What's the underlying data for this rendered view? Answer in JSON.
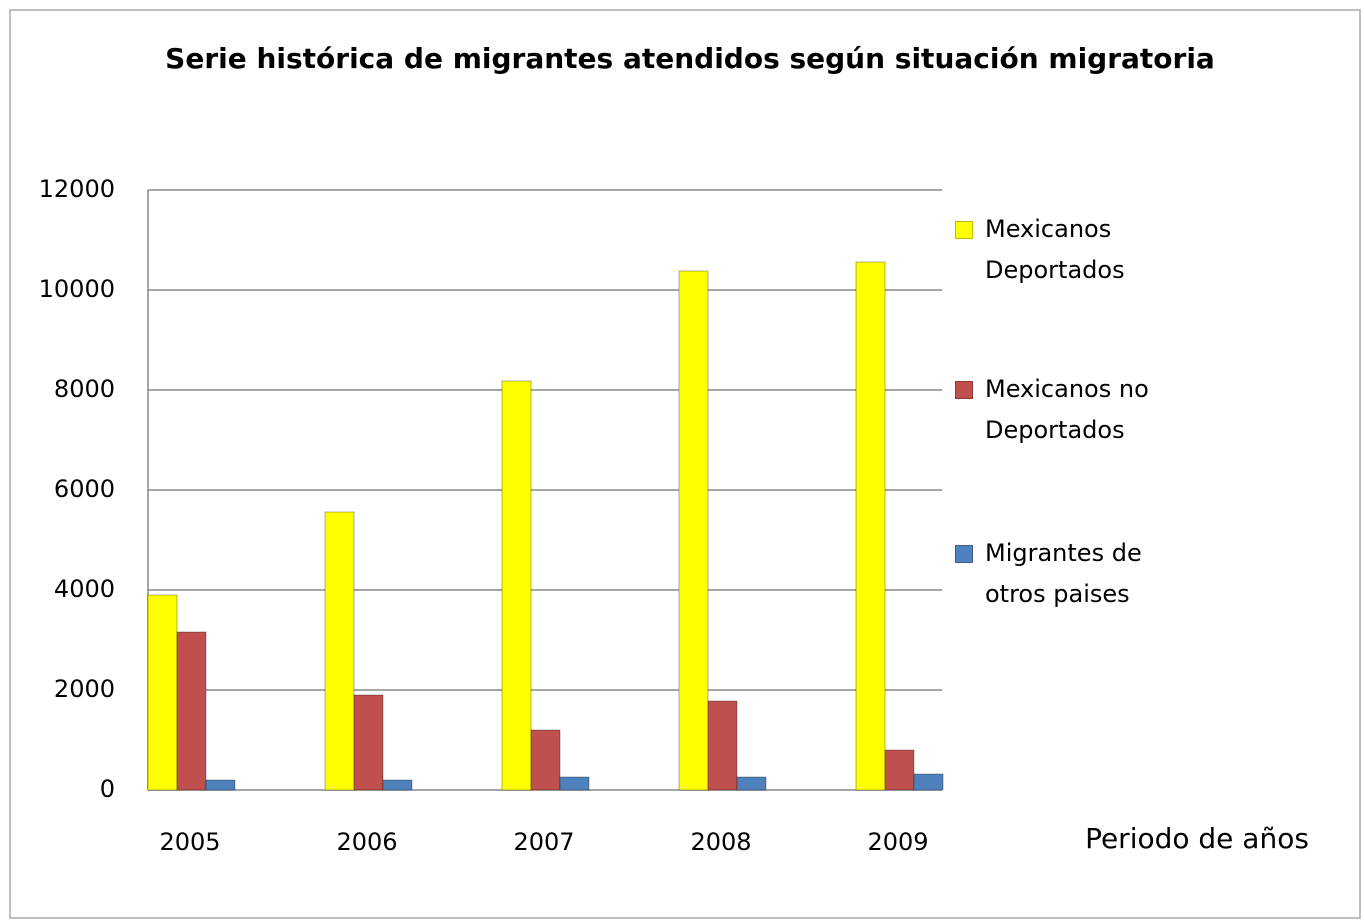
{
  "chart_data": {
    "type": "bar",
    "title": "Serie histórica de migrantes atendidos según situación migratoria",
    "x_label": "Periodo de años",
    "categories": [
      "2005",
      "2006",
      "2007",
      "2008",
      "2009"
    ],
    "series": [
      {
        "name": "Mexicanos Deportados",
        "color": "#ffff00",
        "values": [
          3900,
          5560,
          8180,
          10380,
          10560
        ]
      },
      {
        "name": "Mexicanos no Deportados",
        "color": "#c0504d",
        "values": [
          3160,
          1900,
          1200,
          1780,
          800
        ]
      },
      {
        "name": "Migrantes de otros paises",
        "color": "#4f81bd",
        "values": [
          200,
          200,
          260,
          260,
          320
        ]
      }
    ],
    "ylim": [
      0,
      12000
    ],
    "yticks": [
      0,
      2000,
      4000,
      6000,
      8000,
      10000,
      12000
    ],
    "grid": true
  }
}
